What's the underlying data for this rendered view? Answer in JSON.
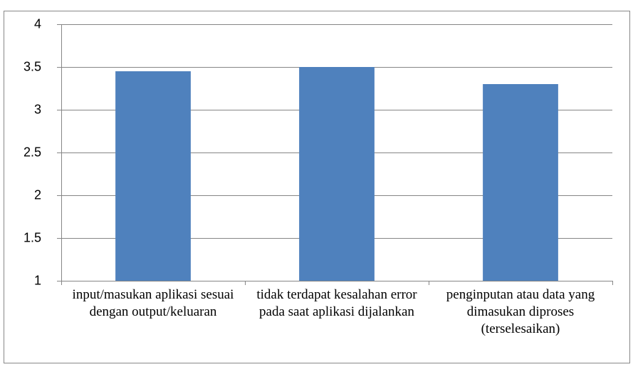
{
  "chart_data": {
    "type": "bar",
    "categories": [
      "input/masukan aplikasi sesuai dengan output/keluaran",
      "tidak terdapat kesalahan error pada saat aplikasi dijalankan",
      "penginputan atau data yang dimasukan diproses (terselesaikan)"
    ],
    "values": [
      3.45,
      3.5,
      3.3
    ],
    "color": "#4f81bd",
    "ylim": [
      1,
      4
    ],
    "yticks": [
      1,
      1.5,
      2,
      2.5,
      3,
      3.5,
      4
    ],
    "grid": true
  }
}
